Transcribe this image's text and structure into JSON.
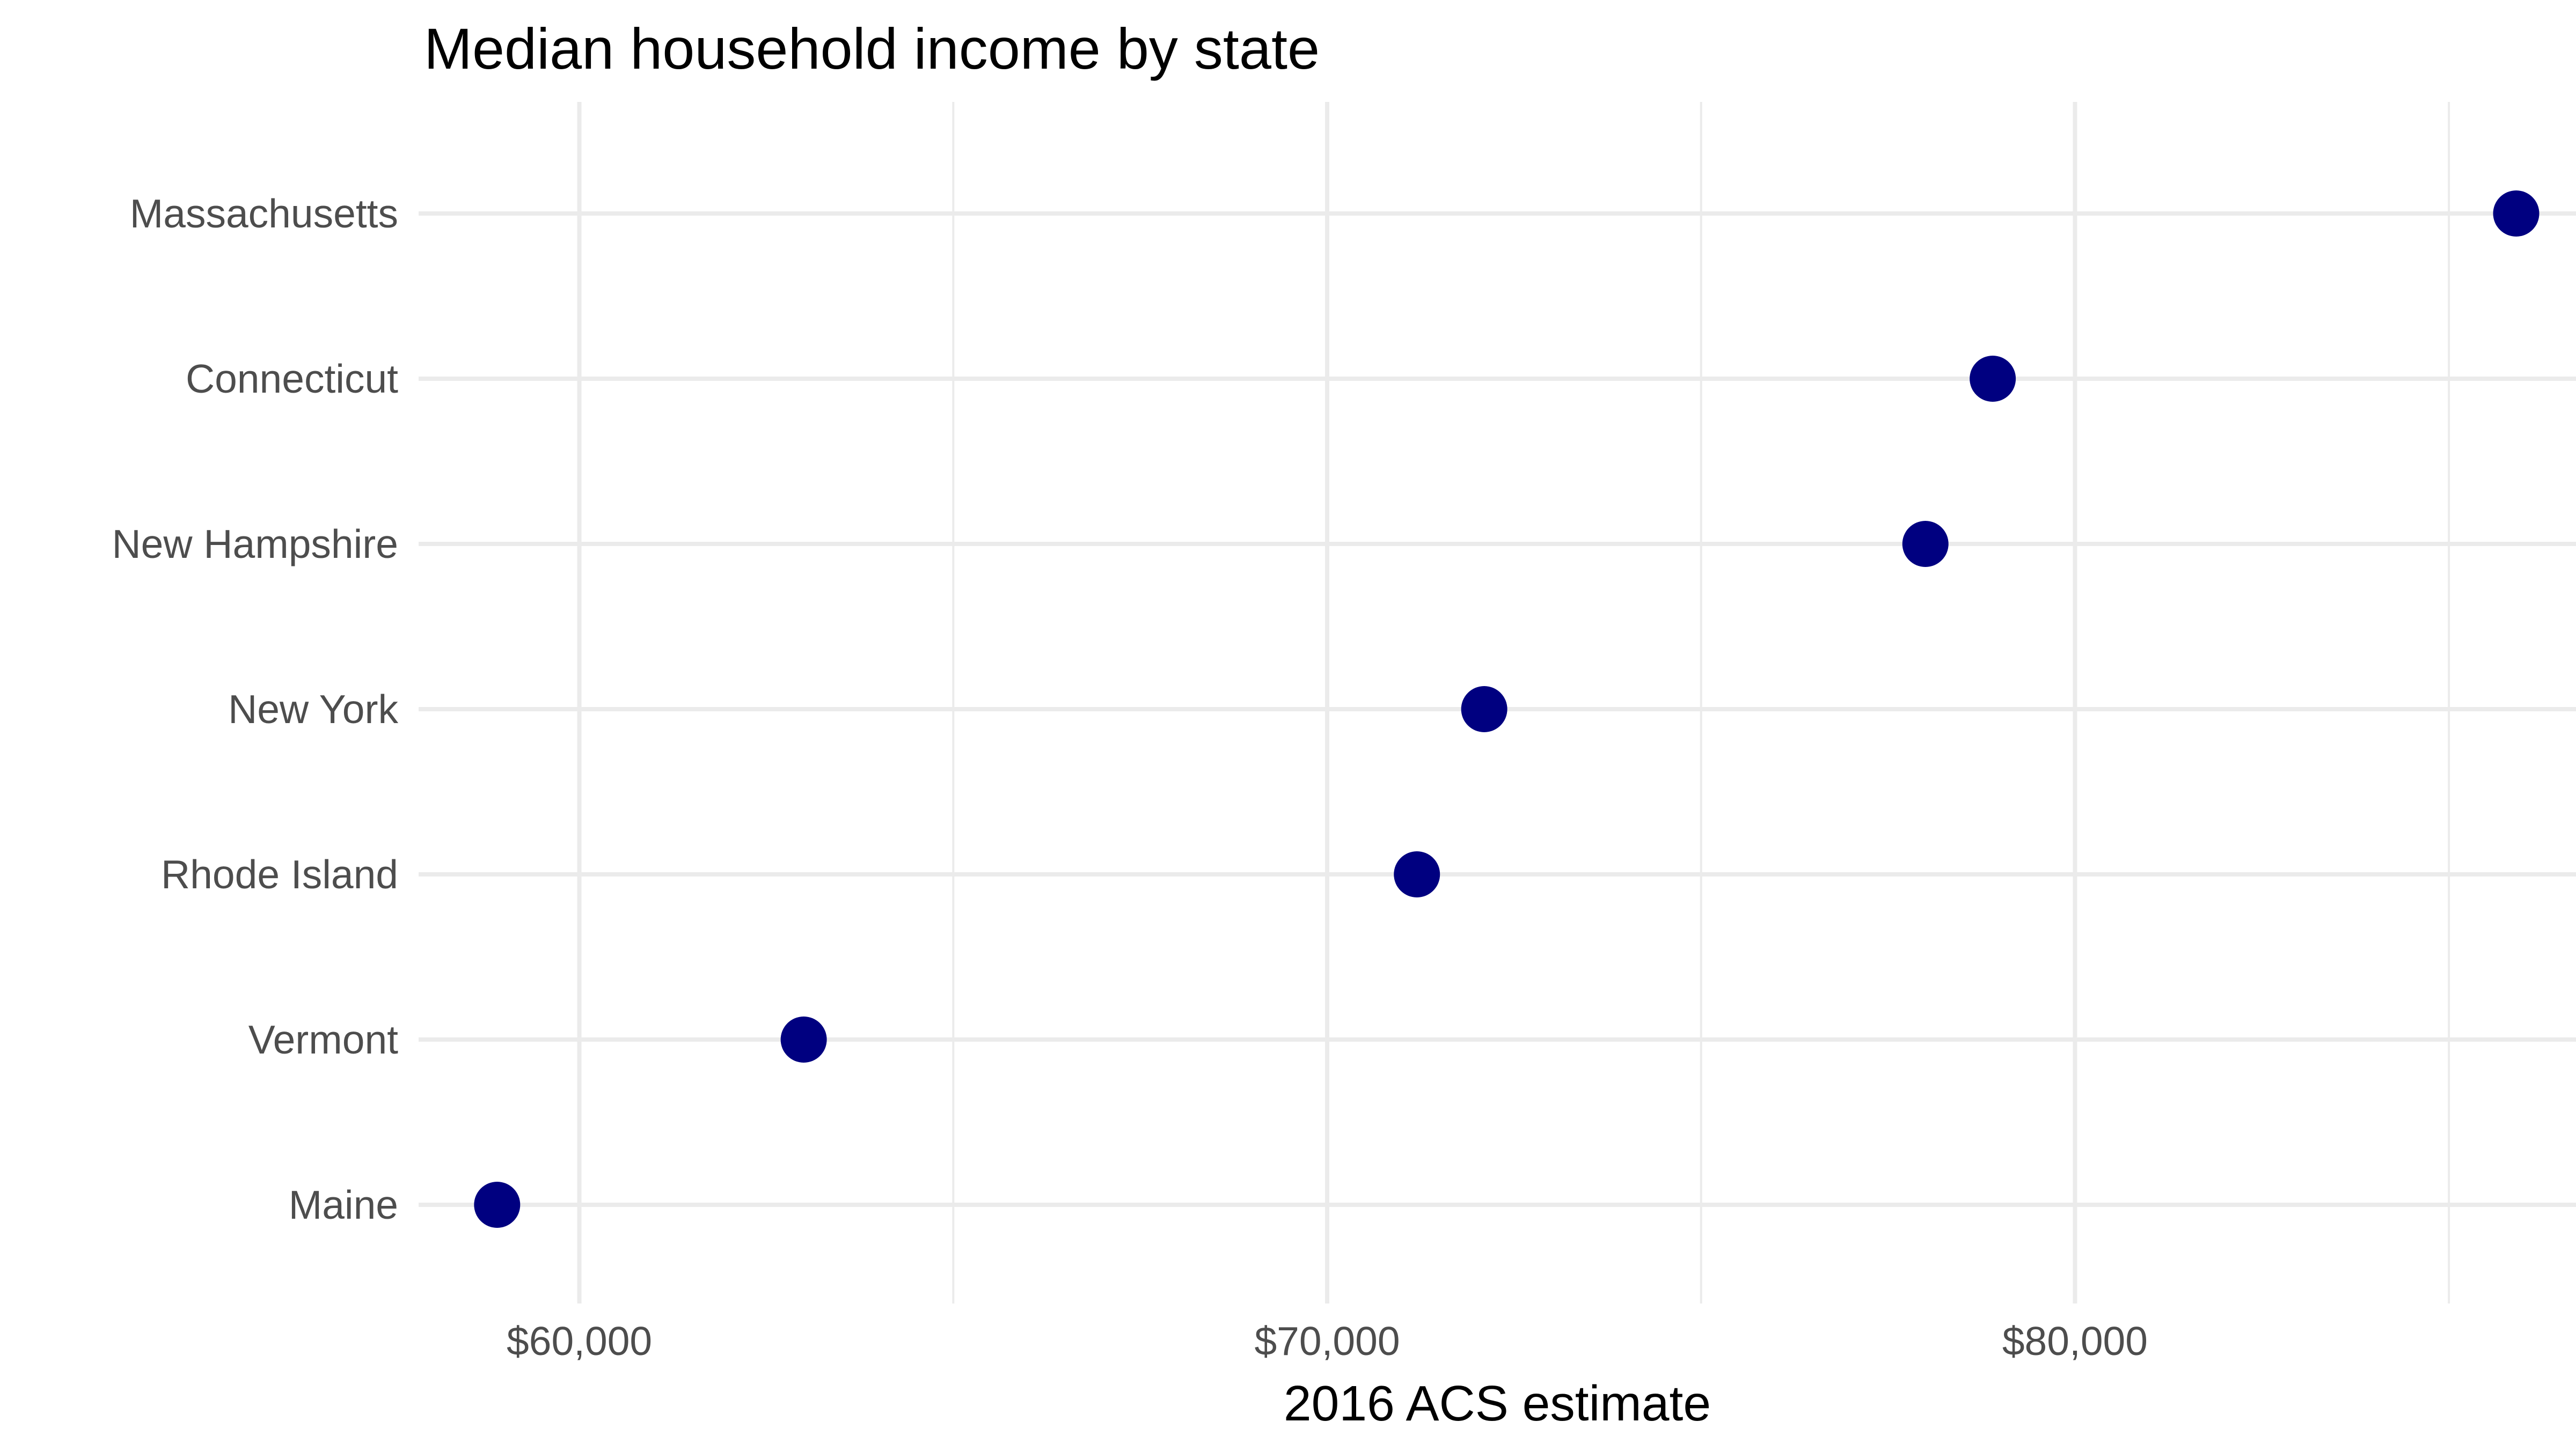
{
  "chart_data": {
    "type": "scatter",
    "title": "Median household income by state",
    "subtitle": "",
    "xlabel": "2016 ACS estimate",
    "ylabel": "",
    "categories": [
      "Maine",
      "Vermont",
      "Rhode Island",
      "New York",
      "New Hampshire",
      "Connecticut",
      "Massachusetts"
    ],
    "values": [
      58900,
      63000,
      71200,
      72100,
      78000,
      78900,
      85900
    ],
    "xlim": [
      57850,
      86700
    ],
    "x_major_ticks": [
      60000,
      70000,
      80000
    ],
    "x_minor_ticks": [
      65000,
      75000,
      85000
    ],
    "x_tick_labels": [
      "$60,000",
      "$70,000",
      "$80,000"
    ],
    "grid": true,
    "legend": "none",
    "point_color": "#000080",
    "grid_color": "#ebebeb",
    "background": "#ffffff"
  }
}
